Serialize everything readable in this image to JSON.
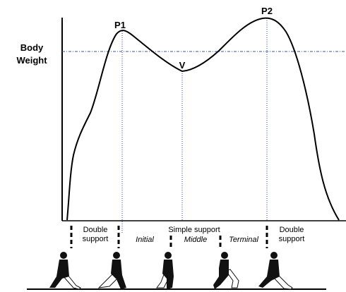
{
  "axis_label": {
    "lines": [
      "Body",
      "Weight"
    ]
  },
  "points": {
    "p1": "P1",
    "v": "V",
    "p2": "P2"
  },
  "phases": {
    "double_support_start": {
      "lines": [
        "Double",
        "support"
      ]
    },
    "simple_support": "Simple support",
    "initial": "Initial",
    "middle": "Middle",
    "terminal": "Terminal",
    "double_support_end": {
      "lines": [
        "Double",
        "support"
      ]
    }
  }
}
